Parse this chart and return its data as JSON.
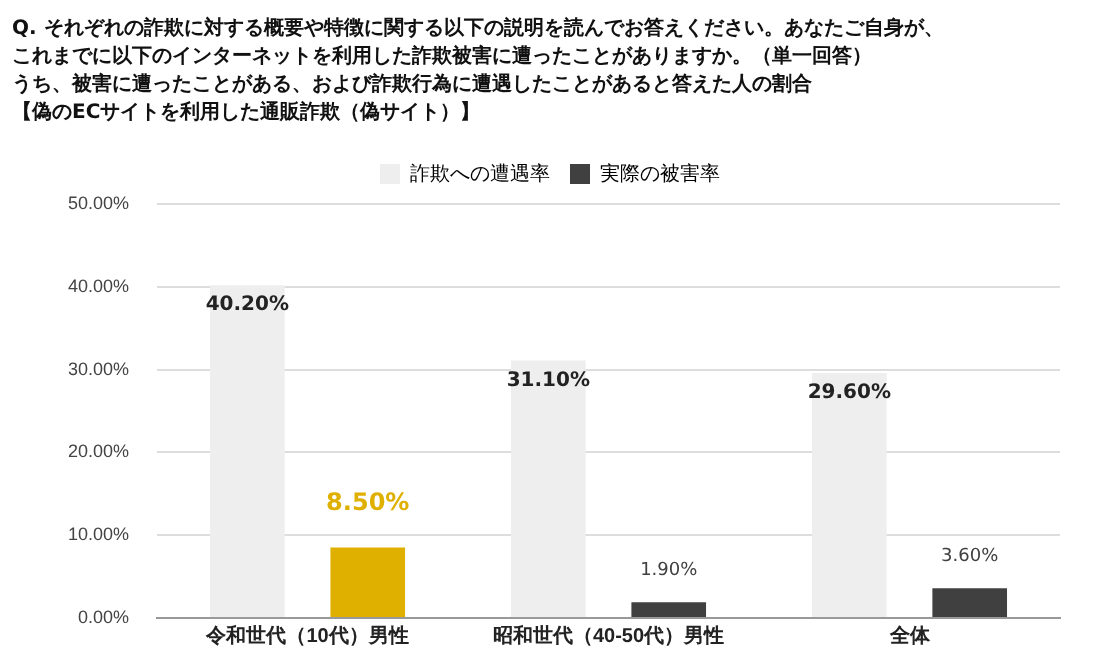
{
  "chart_data": {
    "type": "bar",
    "title": "Q. それぞれの詐欺に対する概要や特徴に関する以下の説明を読んでお答えください。あなたご自身が、これまでに以下のインターネットを利用した詐欺被害に遭ったことがありますか。（単一回答）",
    "subtitle": "うち、被害に遭ったことがある、および詐欺行為に遭遇したことがあると答えた人の割合",
    "annotations": [
      "【偽のECサイトを利用した通販詐欺（偽サイト）】"
    ],
    "categories": [
      "令和世代（10代）男性",
      "昭和世代（40-50代）男性",
      "全体"
    ],
    "series": [
      {
        "name": "詐欺への遭遇率",
        "color": "#eeeeee",
        "values": [
          40.2,
          31.1,
          29.6
        ],
        "value_labels": [
          "40.20%",
          "31.10%",
          "29.60%"
        ]
      },
      {
        "name": "実際の被害率",
        "color": "#404040",
        "colors": [
          "#e0b000",
          "#404040",
          "#404040"
        ],
        "values": [
          8.5,
          1.9,
          3.6
        ],
        "value_labels": [
          "8.50%",
          "1.90%",
          "3.60%"
        ]
      }
    ],
    "ylim": [
      0,
      50
    ],
    "yticks": [
      {
        "value": 0,
        "label": "0.00%"
      },
      {
        "value": 10,
        "label": "10.00%"
      },
      {
        "value": 20,
        "label": "20.00%"
      },
      {
        "value": 30,
        "label": "30.00%"
      },
      {
        "value": 40,
        "label": "40.00%"
      },
      {
        "value": 50,
        "label": "50.00%"
      }
    ],
    "grid": "y",
    "legend": "top"
  }
}
